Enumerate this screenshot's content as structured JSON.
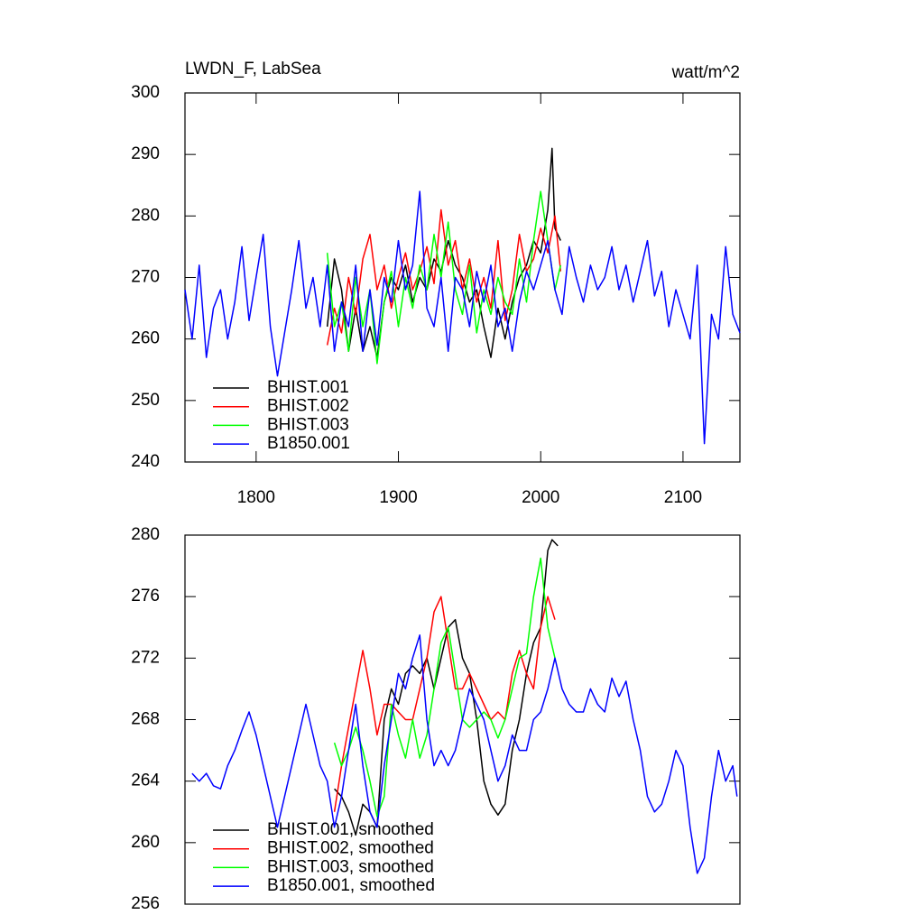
{
  "chart_data": [
    {
      "type": "line",
      "title": "LWDN_F, LabSea",
      "units": "watt/m^2",
      "xlim": [
        1750,
        2140
      ],
      "xticks": [
        1800,
        1900,
        2000,
        2100
      ],
      "ylim": [
        240,
        300
      ],
      "yticks": [
        240,
        250,
        260,
        270,
        280,
        290,
        300
      ],
      "legend": "lower left",
      "series": [
        {
          "name": "BHIST.001",
          "color": "#000000",
          "x": [
            1850,
            1855,
            1860,
            1865,
            1870,
            1875,
            1880,
            1885,
            1890,
            1895,
            1900,
            1905,
            1910,
            1915,
            1920,
            1925,
            1930,
            1935,
            1940,
            1945,
            1950,
            1955,
            1960,
            1965,
            1970,
            1975,
            1980,
            1985,
            1990,
            1995,
            2000,
            2005,
            2008,
            2010,
            2014
          ],
          "values": [
            262,
            273,
            268,
            258,
            265,
            258,
            262,
            257,
            266,
            270,
            268,
            272,
            266,
            270,
            268,
            273,
            271,
            276,
            272,
            270,
            266,
            268,
            262,
            257,
            265,
            260,
            266,
            270,
            272,
            276,
            274,
            281,
            291,
            278,
            276
          ]
        },
        {
          "name": "BHIST.002",
          "color": "#ff0000",
          "x": [
            1850,
            1855,
            1860,
            1865,
            1870,
            1875,
            1880,
            1885,
            1890,
            1895,
            1900,
            1905,
            1910,
            1915,
            1920,
            1925,
            1930,
            1935,
            1940,
            1945,
            1950,
            1955,
            1960,
            1965,
            1970,
            1975,
            1980,
            1985,
            1990,
            1995,
            2000,
            2005,
            2010,
            2014
          ],
          "values": [
            259,
            265,
            261,
            270,
            264,
            273,
            277,
            268,
            272,
            265,
            270,
            274,
            268,
            271,
            275,
            269,
            281,
            272,
            276,
            268,
            273,
            266,
            270,
            265,
            276,
            263,
            268,
            277,
            271,
            273,
            278,
            274,
            280,
            271
          ]
        },
        {
          "name": "BHIST.003",
          "color": "#00ff00",
          "x": [
            1850,
            1855,
            1860,
            1865,
            1870,
            1875,
            1880,
            1885,
            1890,
            1895,
            1900,
            1905,
            1910,
            1915,
            1920,
            1925,
            1930,
            1935,
            1940,
            1945,
            1950,
            1955,
            1960,
            1965,
            1970,
            1975,
            1980,
            1985,
            1990,
            1995,
            2000,
            2005,
            2010,
            2014
          ],
          "values": [
            274,
            262,
            266,
            258,
            270,
            262,
            268,
            256,
            266,
            271,
            262,
            270,
            265,
            272,
            268,
            277,
            270,
            279,
            268,
            264,
            272,
            261,
            268,
            264,
            270,
            266,
            264,
            273,
            266,
            276,
            284,
            276,
            268,
            272
          ]
        },
        {
          "name": "B1850.001",
          "color": "#0000ff",
          "x": [
            1750,
            1755,
            1760,
            1765,
            1770,
            1775,
            1780,
            1785,
            1790,
            1795,
            1800,
            1805,
            1810,
            1815,
            1820,
            1825,
            1830,
            1835,
            1840,
            1845,
            1850,
            1855,
            1860,
            1865,
            1870,
            1875,
            1880,
            1885,
            1890,
            1895,
            1900,
            1905,
            1910,
            1915,
            1920,
            1925,
            1930,
            1935,
            1940,
            1945,
            1950,
            1955,
            1960,
            1965,
            1970,
            1975,
            1980,
            1985,
            1990,
            1995,
            2000,
            2005,
            2010,
            2015,
            2020,
            2025,
            2030,
            2035,
            2040,
            2045,
            2050,
            2055,
            2060,
            2065,
            2070,
            2075,
            2080,
            2085,
            2090,
            2095,
            2100,
            2105,
            2110,
            2115,
            2120,
            2125,
            2130,
            2135,
            2140
          ],
          "values": [
            268,
            260,
            272,
            257,
            265,
            268,
            260,
            266,
            275,
            263,
            270,
            277,
            262,
            254,
            261,
            268,
            276,
            265,
            270,
            262,
            272,
            258,
            266,
            262,
            272,
            258,
            268,
            259,
            270,
            266,
            276,
            268,
            272,
            284,
            265,
            262,
            270,
            258,
            270,
            268,
            262,
            271,
            266,
            272,
            262,
            265,
            258,
            266,
            271,
            268,
            272,
            276,
            268,
            264,
            275,
            270,
            266,
            272,
            268,
            270,
            275,
            268,
            272,
            266,
            271,
            276,
            267,
            271,
            262,
            268,
            264,
            260,
            272,
            243,
            264,
            260,
            275,
            264,
            261
          ]
        }
      ]
    },
    {
      "type": "line",
      "xlim": [
        1750,
        2140
      ],
      "ylim": [
        256,
        280
      ],
      "yticks": [
        256,
        260,
        264,
        268,
        272,
        276,
        280
      ],
      "legend": "lower left",
      "series": [
        {
          "name": "BHIST.001, smoothed",
          "color": "#000000",
          "x": [
            1855,
            1860,
            1865,
            1870,
            1875,
            1880,
            1885,
            1890,
            1895,
            1900,
            1905,
            1910,
            1915,
            1920,
            1925,
            1930,
            1935,
            1940,
            1945,
            1950,
            1955,
            1960,
            1965,
            1970,
            1975,
            1980,
            1985,
            1990,
            1995,
            2000,
            2005,
            2008,
            2012
          ],
          "values": [
            263.5,
            263,
            262,
            260.5,
            262.5,
            262,
            261,
            268,
            270,
            269,
            271,
            271.5,
            271,
            272,
            270,
            272,
            274,
            274.5,
            272,
            271,
            268,
            264,
            262.5,
            261.8,
            262.5,
            266,
            268,
            271,
            273,
            274,
            279,
            279.7,
            279.3
          ]
        },
        {
          "name": "BHIST.002, smoothed",
          "color": "#ff0000",
          "x": [
            1855,
            1860,
            1865,
            1870,
            1875,
            1880,
            1885,
            1890,
            1895,
            1900,
            1905,
            1910,
            1915,
            1920,
            1925,
            1930,
            1935,
            1940,
            1945,
            1950,
            1955,
            1960,
            1965,
            1970,
            1975,
            1980,
            1985,
            1990,
            1995,
            2000,
            2005,
            2010
          ],
          "values": [
            262,
            265,
            267.5,
            270,
            272.5,
            270,
            267,
            269,
            269,
            268.5,
            268,
            268,
            270,
            272,
            275,
            276,
            273,
            270,
            270,
            271,
            270,
            269,
            268,
            268.5,
            268,
            271,
            272.5,
            271,
            270,
            274,
            276,
            274.5
          ]
        },
        {
          "name": "BHIST.003, smoothed",
          "color": "#00ff00",
          "x": [
            1855,
            1860,
            1865,
            1870,
            1875,
            1880,
            1885,
            1890,
            1895,
            1900,
            1905,
            1910,
            1915,
            1920,
            1925,
            1930,
            1935,
            1940,
            1945,
            1950,
            1955,
            1960,
            1965,
            1970,
            1975,
            1980,
            1985,
            1990,
            1995,
            2000,
            2005,
            2010
          ],
          "values": [
            266.5,
            265,
            266,
            267.5,
            266,
            264,
            261.7,
            263,
            269,
            267,
            265.5,
            268,
            265.5,
            267,
            270,
            273,
            274,
            271,
            268,
            267.5,
            268,
            268.5,
            268,
            266.8,
            268,
            270,
            272,
            272.3,
            276,
            278.5,
            274,
            272
          ]
        },
        {
          "name": "B1850.001, smoothed",
          "color": "#0000ff",
          "x": [
            1755,
            1760,
            1765,
            1770,
            1775,
            1780,
            1785,
            1790,
            1795,
            1800,
            1805,
            1810,
            1815,
            1820,
            1825,
            1830,
            1835,
            1840,
            1845,
            1850,
            1855,
            1860,
            1865,
            1870,
            1875,
            1880,
            1885,
            1890,
            1895,
            1900,
            1905,
            1910,
            1915,
            1920,
            1925,
            1930,
            1935,
            1940,
            1945,
            1950,
            1955,
            1960,
            1965,
            1970,
            1975,
            1980,
            1985,
            1990,
            1995,
            2000,
            2005,
            2010,
            2015,
            2020,
            2025,
            2030,
            2035,
            2040,
            2045,
            2050,
            2055,
            2060,
            2065,
            2070,
            2075,
            2080,
            2085,
            2090,
            2095,
            2100,
            2105,
            2110,
            2115,
            2120,
            2125,
            2130,
            2135,
            2138
          ],
          "values": [
            264.5,
            264,
            264.5,
            263.7,
            263.5,
            265,
            266,
            267.3,
            268.5,
            267,
            265,
            263,
            261,
            263,
            265,
            267,
            269,
            267,
            265,
            264,
            261,
            263,
            266,
            269,
            265,
            262,
            261,
            265,
            268,
            271,
            270,
            272,
            273.5,
            268,
            265,
            266,
            265,
            266,
            268,
            270,
            269,
            268,
            266,
            264,
            265,
            267,
            266,
            266,
            268,
            268.5,
            270,
            272,
            270,
            269,
            268.5,
            268.5,
            270,
            269,
            268.5,
            270.7,
            269.5,
            270.5,
            268,
            266,
            263,
            262,
            262.5,
            264,
            266,
            265,
            261,
            258,
            259,
            263,
            266,
            264,
            265,
            263
          ]
        }
      ]
    }
  ]
}
